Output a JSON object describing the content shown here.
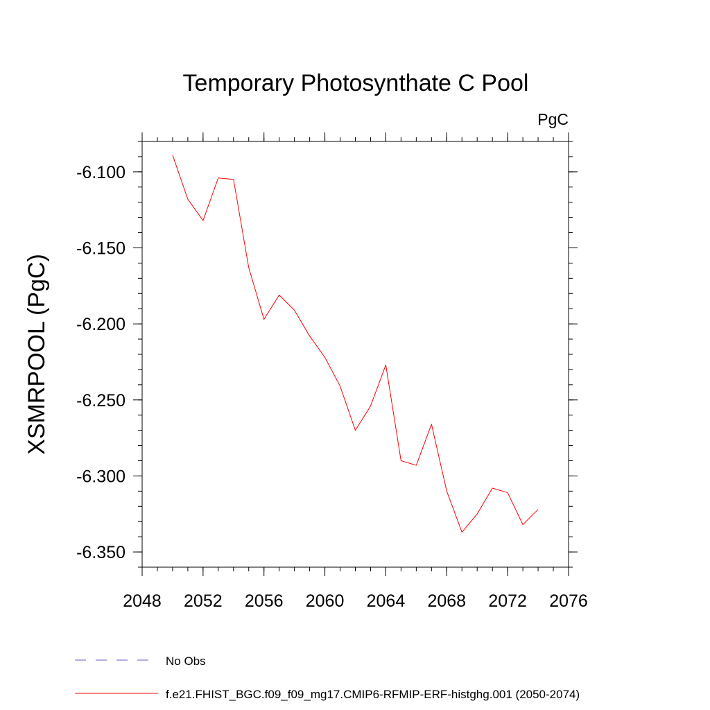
{
  "chart_data": {
    "type": "line",
    "title": "Temporary Photosynthate C Pool",
    "units": "PgC",
    "xlabel": "",
    "ylabel": "XSMRPOOL  (PgC)",
    "xlim": [
      2048,
      2076
    ],
    "ylim": [
      -6.36,
      -6.08
    ],
    "x_ticks": [
      2048,
      2052,
      2056,
      2060,
      2064,
      2068,
      2072,
      2076
    ],
    "x_tick_labels": [
      "2048",
      "2052",
      "2056",
      "2060",
      "2064",
      "2068",
      "2072",
      "2076"
    ],
    "y_ticks": [
      -6.1,
      -6.15,
      -6.2,
      -6.25,
      -6.3,
      -6.35
    ],
    "y_tick_labels": [
      "-6.100",
      "-6.150",
      "-6.200",
      "-6.250",
      "-6.300",
      "-6.350"
    ],
    "grid": false,
    "legend_placement": "bottom",
    "series": [
      {
        "name": "f.e21.FHIST_BGC.f09_f09_mg17.CMIP6-RFMIP-ERF-histghg.001 (2050-2074)",
        "color": "#ff0000",
        "style": "solid",
        "x": [
          2050,
          2051,
          2052,
          2053,
          2054,
          2055,
          2056,
          2057,
          2058,
          2059,
          2060,
          2061,
          2062,
          2063,
          2064,
          2065,
          2066,
          2067,
          2068,
          2069,
          2070,
          2071,
          2072,
          2073,
          2074
        ],
        "y": [
          -6.089,
          -6.118,
          -6.132,
          -6.104,
          -6.105,
          -6.163,
          -6.197,
          -6.181,
          -6.191,
          -6.208,
          -6.222,
          -6.241,
          -6.27,
          -6.254,
          -6.227,
          -6.29,
          -6.293,
          -6.266,
          -6.31,
          -6.337,
          -6.325,
          -6.308,
          -6.311,
          -6.332,
          -6.322
        ]
      }
    ],
    "legend": [
      {
        "label": "No Obs",
        "color": "#6a5acd",
        "style": "dashed"
      },
      {
        "label": "f.e21.FHIST_BGC.f09_f09_mg17.CMIP6-RFMIP-ERF-histghg.001 (2050-2074)",
        "color": "#ff0000",
        "style": "solid"
      }
    ]
  }
}
